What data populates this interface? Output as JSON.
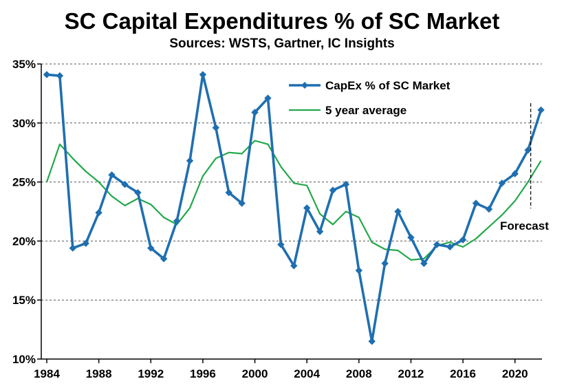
{
  "chart_data": {
    "type": "line",
    "title": "SC Capital Expenditures % of SC Market",
    "subtitle": "Sources: WSTS, Gartner, IC Insights",
    "xlabel": "",
    "ylabel": "",
    "xlim": [
      1984,
      2022
    ],
    "ylim": [
      10,
      35
    ],
    "x_ticks": [
      "1984",
      "1988",
      "1992",
      "1996",
      "2000",
      "2004",
      "2008",
      "2012",
      "2016",
      "2020"
    ],
    "y_ticks": [
      "10%",
      "15%",
      "20%",
      "25%",
      "30%",
      "35%"
    ],
    "grid": "horizontal dashed",
    "legend_position": "top-center",
    "annotation": "Forecast",
    "forecast_from": 2021,
    "colors": {
      "capex": "#1f6fb0",
      "avg": "#22a84a"
    },
    "series": [
      {
        "name": "CapEx % of SC Market",
        "x": [
          1984,
          1985,
          1986,
          1987,
          1988,
          1989,
          1990,
          1991,
          1992,
          1993,
          1994,
          1995,
          1996,
          1997,
          1998,
          1999,
          2000,
          2001,
          2002,
          2003,
          2004,
          2005,
          2006,
          2007,
          2008,
          2009,
          2010,
          2011,
          2012,
          2013,
          2014,
          2015,
          2016,
          2017,
          2018,
          2019,
          2020,
          2021,
          2022
        ],
        "values": [
          34.1,
          34.0,
          19.4,
          19.8,
          22.4,
          25.6,
          24.8,
          24.1,
          19.4,
          18.5,
          21.7,
          26.8,
          34.1,
          29.6,
          24.1,
          23.2,
          30.9,
          32.1,
          19.7,
          17.9,
          22.8,
          20.8,
          24.3,
          24.8,
          17.5,
          11.5,
          18.1,
          22.5,
          20.3,
          18.1,
          19.7,
          19.5,
          20.1,
          23.2,
          22.7,
          24.9,
          25.7,
          27.7,
          31.1
        ],
        "marker": "diamond"
      },
      {
        "name": "5 year average",
        "x": [
          1984,
          1985,
          1986,
          1987,
          1988,
          1989,
          1990,
          1991,
          1992,
          1993,
          1994,
          1995,
          1996,
          1997,
          1998,
          1999,
          2000,
          2001,
          2002,
          2003,
          2004,
          2005,
          2006,
          2007,
          2008,
          2009,
          2010,
          2011,
          2012,
          2013,
          2014,
          2015,
          2016,
          2017,
          2018,
          2019,
          2020,
          2021,
          2022
        ],
        "values": [
          25.0,
          28.2,
          27.0,
          25.9,
          25.0,
          23.8,
          23.0,
          23.6,
          23.1,
          22.0,
          21.4,
          22.8,
          25.5,
          27.0,
          27.5,
          27.4,
          28.5,
          28.2,
          26.3,
          24.9,
          24.7,
          22.3,
          21.4,
          22.5,
          22.0,
          19.9,
          19.3,
          19.2,
          18.4,
          18.5,
          19.6,
          19.9,
          19.5,
          20.2,
          21.2,
          22.2,
          23.4,
          25.0,
          26.8
        ],
        "marker": "none"
      }
    ]
  }
}
